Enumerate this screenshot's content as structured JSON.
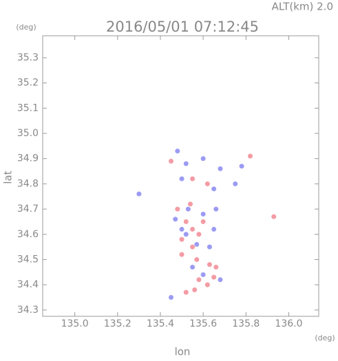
{
  "chart_data": {
    "type": "scatter",
    "title": "2016/05/01 07:12:45",
    "subtitle": "ALT(km) 2.0",
    "x_label": "lon",
    "y_label": "lat",
    "x_unit": "(deg)",
    "y_unit": "(deg)",
    "xlim": [
      134.85,
      136.14
    ],
    "ylim": [
      34.275,
      35.387
    ],
    "xticks": [
      {
        "value": 135.0,
        "label": "135.0"
      },
      135.2,
      135.4,
      135.6,
      135.8,
      {
        "value": 136.0,
        "label": "136.0"
      }
    ],
    "yticks": [
      34.3,
      34.4,
      34.5,
      34.6,
      34.7,
      34.8,
      34.9,
      {
        "value": 35.0,
        "label": "35.0"
      },
      35.1,
      35.2,
      35.3
    ],
    "series": [
      {
        "color": "#f07a86",
        "x": [
          135.45,
          135.55,
          135.62,
          135.82,
          135.93,
          135.52,
          135.55,
          135.58,
          135.5,
          135.55,
          135.6,
          135.63,
          135.66,
          135.58,
          135.62,
          135.56,
          135.52,
          135.48,
          135.54,
          135.57,
          135.5,
          135.65
        ],
        "values": [
          34.89,
          34.82,
          34.8,
          34.91,
          34.67,
          34.65,
          34.62,
          34.6,
          34.58,
          34.55,
          34.65,
          34.48,
          34.47,
          34.42,
          34.4,
          34.38,
          34.37,
          34.7,
          34.72,
          34.5,
          34.52,
          34.43
        ]
      },
      {
        "color": "#7a7af0",
        "x": [
          135.48,
          135.52,
          135.6,
          135.68,
          135.78,
          135.75,
          135.5,
          135.65,
          135.3,
          135.53,
          135.6,
          135.65,
          135.5,
          135.57,
          135.63,
          135.47,
          135.55,
          135.68,
          135.45,
          135.6,
          135.52,
          135.66
        ],
        "values": [
          34.93,
          34.88,
          34.9,
          34.86,
          34.87,
          34.8,
          34.82,
          34.78,
          34.76,
          34.7,
          34.68,
          34.62,
          34.62,
          34.56,
          34.55,
          34.66,
          34.47,
          34.42,
          34.35,
          34.44,
          34.6,
          34.7
        ]
      }
    ]
  }
}
